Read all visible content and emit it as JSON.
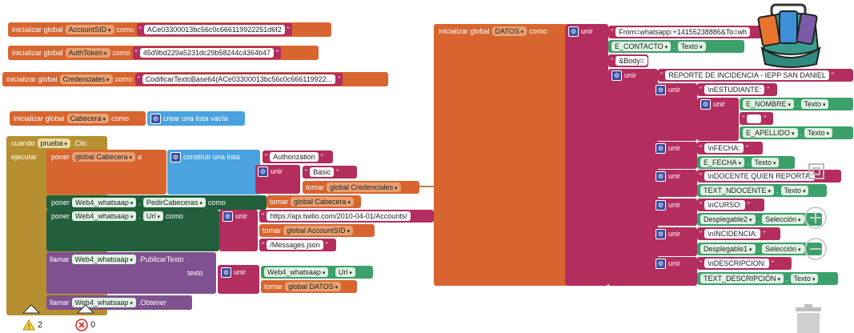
{
  "globals": {
    "init_label": "inicializar global",
    "como": "como",
    "account_sid": {
      "name": "AccountSID",
      "value": "ACe03300013bc56c0c666119922251d6f2"
    },
    "auth_token": {
      "name": "AuthToken",
      "value": "45d9bd229a5231dc29b58244c4364b47"
    },
    "credenciales": {
      "name": "Credenciales",
      "value": "CodificarTextoBase64(ACe03300013bc56c0c666119922..."
    },
    "cabecera": {
      "name": "Cabecera",
      "value": "crear una lista vacía"
    }
  },
  "event": {
    "cuando": "cuando",
    "component": "prueba",
    "event": ".Clic",
    "ejecutar": "ejecutar",
    "poner": "poner",
    "a": "a",
    "global_cabecera": "global Cabecera",
    "construir_lista": "construir una lista",
    "authorization": "Authorization",
    "unir": "unir",
    "basic": "Basic",
    "tomar": "tomar",
    "global_credenciales": "global Credenciales",
    "web4": "Web4_whatsaap",
    "pedir_cabeceras": "PedirCabeceras",
    "tomar_global_cabecera": "global Cabecera",
    "url": "Url",
    "url_value": "https://api.twilio.com/2010-04-01/Accounts/",
    "global_account_sid": "global AccountSID",
    "messages": "/Messages.json",
    "llamar": "llamar",
    "publicar": ".PublicarTexto",
    "texto": "texto",
    "global_datos": "global DATOS",
    "obtener": ".Obtener"
  },
  "datos": {
    "name": "DATOS",
    "from": "From=whatsapp:+14155238886&To=wh",
    "e_contacto": "E_CONTACTO",
    "texto_prop": "Texto",
    "body": "&Body=",
    "reporte": "REPORTE DE INCIDENCIA - IEPP SAN DANIEL",
    "estudiante": "\\nESTUDIANTE:",
    "e_nombre": "E_NOMBRE",
    "e_apellido": "E_APELLIDO",
    "fecha": "\\nFECHA:",
    "e_fecha": "E_FECHA",
    "docente": "\\nDOCENTE QUIEN REPORTA:",
    "text_ndocente": "TEXT_NDOCENTE",
    "curso": "\\nCURSO:",
    "desplegable2": "Desplegable2",
    "seleccion": "Selección",
    "incidencia": "\\nINCIDENCIA:",
    "desplegable1": "Desplegable1",
    "descripcion": "\\nDESCRIPCION:",
    "text_descripcion": "TEXT_DESCRIPCIÓN"
  },
  "status": {
    "warnings": "2",
    "errors": "0"
  },
  "icons": [
    "backpack-icon",
    "warning-icon",
    "error-icon",
    "trash-icon",
    "zoom-in-icon",
    "zoom-out-icon",
    "center-icon",
    "collapse-arrow-icon"
  ],
  "colors": {
    "global": "#d86530",
    "text": "#b32d5e",
    "list": "#4aa3df",
    "event": "#b69030",
    "component": "#225f3d",
    "call": "#7f5190",
    "property": "#3ba06a"
  }
}
